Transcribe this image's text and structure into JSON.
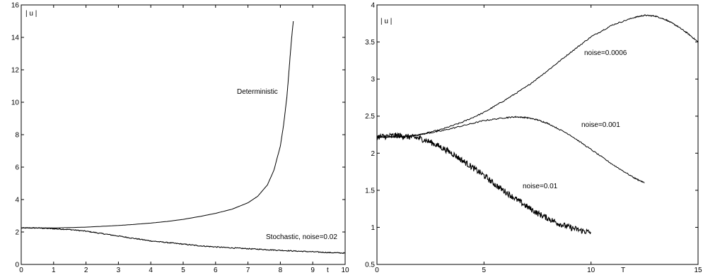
{
  "chart_data": [
    {
      "type": "line",
      "xlabel": "t",
      "ylabel": "| u |",
      "xlim": [
        0,
        10
      ],
      "ylim": [
        0,
        16
      ],
      "xticks": [
        "0",
        "1",
        "2",
        "3",
        "4",
        "5",
        "6",
        "7",
        "8",
        "9",
        "10"
      ],
      "yticks": [
        "0",
        "2",
        "4",
        "6",
        "8",
        "10",
        "12",
        "14",
        "16"
      ],
      "grid": false,
      "series": [
        {
          "name": "Deterministic",
          "x": [
            0,
            0.5,
            1,
            1.5,
            2,
            2.5,
            3,
            3.5,
            4,
            4.5,
            5,
            5.5,
            6,
            6.5,
            7,
            7.3,
            7.6,
            7.8,
            8.0,
            8.1,
            8.2,
            8.25,
            8.3,
            8.35,
            8.4
          ],
          "y": [
            2.25,
            2.25,
            2.25,
            2.27,
            2.3,
            2.35,
            2.4,
            2.47,
            2.55,
            2.65,
            2.78,
            2.95,
            3.15,
            3.4,
            3.8,
            4.2,
            4.9,
            5.8,
            7.3,
            8.6,
            10.3,
            11.5,
            12.8,
            14.0,
            15.0
          ],
          "noise": 0
        },
        {
          "name": "Stochastic, noise=0.02",
          "x": [
            0,
            0.5,
            1,
            1.5,
            2,
            2.5,
            3,
            3.5,
            4,
            4.5,
            5,
            5.5,
            6,
            6.5,
            7,
            7.5,
            8,
            8.5,
            9,
            9.5,
            10
          ],
          "y": [
            2.25,
            2.25,
            2.2,
            2.15,
            2.05,
            1.9,
            1.75,
            1.6,
            1.45,
            1.35,
            1.25,
            1.15,
            1.08,
            1.02,
            0.97,
            0.92,
            0.87,
            0.82,
            0.78,
            0.73,
            0.7
          ],
          "noise": 0.03
        }
      ],
      "annotations": [
        "Deterministic",
        "Stochastic, noise=0.02"
      ]
    },
    {
      "type": "line",
      "xlabel": "T",
      "ylabel": "| u |",
      "xlim": [
        0,
        15
      ],
      "ylim": [
        0.5,
        4
      ],
      "xticks": [
        "0",
        "5",
        "10",
        "15"
      ],
      "yticks": [
        "0.5",
        "1",
        "1.5",
        "2",
        "2.5",
        "3",
        "3.5",
        "4"
      ],
      "grid": false,
      "series": [
        {
          "name": "noise=0.0006",
          "x": [
            0,
            0.5,
            1,
            1.5,
            2,
            3,
            4,
            5,
            6,
            7,
            8,
            9,
            10,
            11,
            12,
            12.5,
            13,
            13.5,
            14,
            14.5,
            15
          ],
          "y": [
            2.22,
            2.22,
            2.22,
            2.23,
            2.25,
            2.32,
            2.42,
            2.55,
            2.72,
            2.9,
            3.12,
            3.35,
            3.57,
            3.73,
            3.83,
            3.86,
            3.85,
            3.8,
            3.72,
            3.62,
            3.5
          ],
          "noise": 0.008
        },
        {
          "name": "noise=0.001",
          "x": [
            0,
            0.5,
            1,
            1.5,
            2,
            3,
            4,
            5,
            6,
            6.5,
            7,
            7.5,
            8,
            9,
            10,
            11,
            12,
            12.5
          ],
          "y": [
            2.22,
            2.22,
            2.22,
            2.23,
            2.25,
            2.3,
            2.37,
            2.44,
            2.48,
            2.49,
            2.48,
            2.45,
            2.4,
            2.25,
            2.05,
            1.85,
            1.67,
            1.6
          ],
          "noise": 0.008
        },
        {
          "name": "noise=0.01",
          "x": [
            0,
            0.5,
            1,
            1.5,
            2,
            2.5,
            3,
            3.5,
            4,
            4.5,
            5,
            5.5,
            6,
            6.5,
            7,
            7.5,
            8,
            8.5,
            9,
            9.5,
            10
          ],
          "y": [
            2.22,
            2.23,
            2.24,
            2.22,
            2.2,
            2.15,
            2.08,
            2.0,
            1.9,
            1.8,
            1.7,
            1.58,
            1.48,
            1.38,
            1.28,
            1.19,
            1.12,
            1.05,
            1.0,
            0.96,
            0.93
          ],
          "noise": 0.04
        }
      ],
      "annotations": [
        "noise=0.0006",
        "noise=0.001",
        "noise=0.01"
      ]
    }
  ]
}
